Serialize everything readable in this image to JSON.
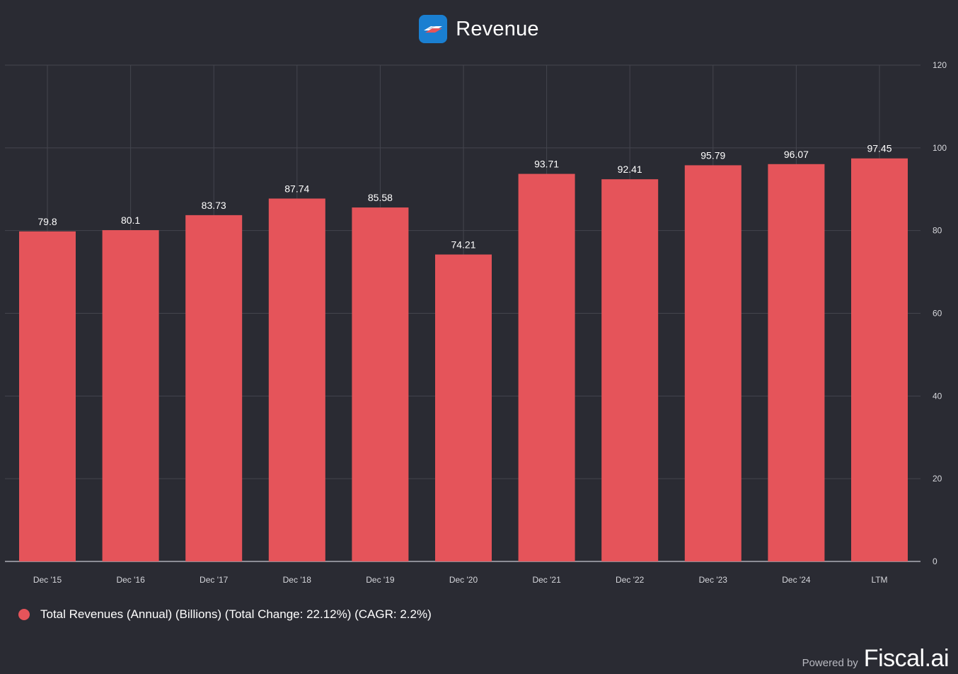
{
  "header": {
    "title": "Revenue",
    "logo_icon": "bank-flag-logo-icon"
  },
  "chart_data": {
    "type": "bar",
    "title": "Revenue",
    "categories": [
      "Dec '15",
      "Dec '16",
      "Dec '17",
      "Dec '18",
      "Dec '19",
      "Dec '20",
      "Dec '21",
      "Dec '22",
      "Dec '23",
      "Dec '24",
      "LTM"
    ],
    "series": [
      {
        "name": "Total Revenues (Annual) (Billions) (Total Change: 22.12%) (CAGR: 2.2%)",
        "values": [
          79.8,
          80.1,
          83.73,
          87.74,
          85.58,
          74.21,
          93.71,
          92.41,
          95.79,
          96.07,
          97.45
        ],
        "color": "#e5545a"
      }
    ],
    "ylim": [
      0,
      120
    ],
    "yticks": [
      0,
      20,
      40,
      60,
      80,
      100,
      120
    ],
    "y_axis_side": "right",
    "grid": true,
    "data_labels": true,
    "legend": "bottom-left"
  },
  "colors": {
    "background": "#2a2b33",
    "grid": "#44454e",
    "bar": "#e5545a",
    "tick_text": "#d6d7dc"
  },
  "footer": {
    "powered_by": "Powered by",
    "brand": "Fiscal.ai"
  }
}
